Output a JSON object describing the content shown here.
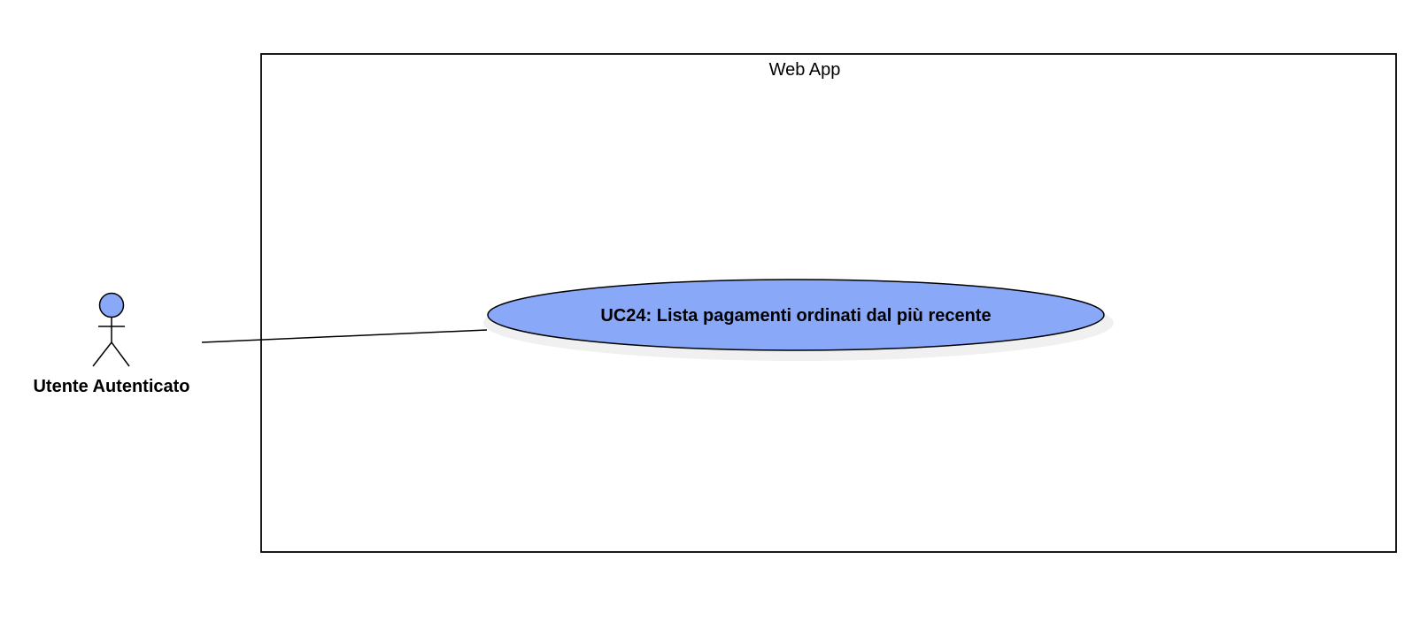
{
  "system": {
    "title": "Web App"
  },
  "actor": {
    "label": "Utente Autenticato",
    "icon": "stick-figure-icon",
    "head_color": "#8aa8f8"
  },
  "usecase": {
    "label": "UC24: Lista pagamenti ordinati dal più recente",
    "fill_color": "#8aa8f8"
  },
  "colors": {
    "stroke": "#000000",
    "shadow": "#f0f0f0",
    "background": "#ffffff"
  }
}
